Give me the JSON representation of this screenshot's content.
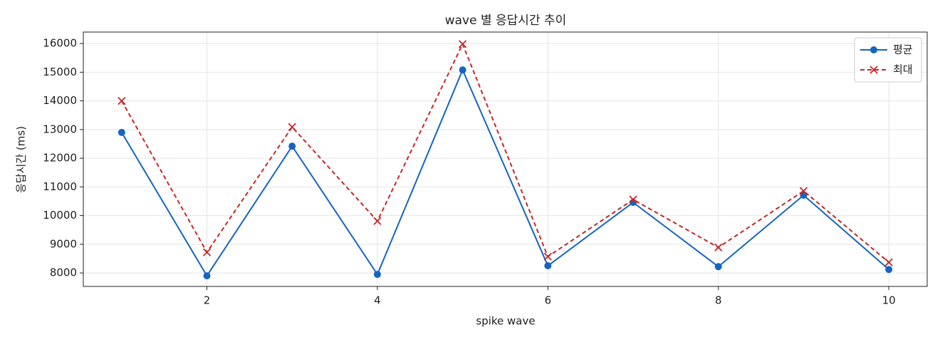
{
  "chart_data": {
    "type": "line",
    "title": "wave 별 응답시간 추이",
    "xlabel": "spike wave",
    "ylabel": "응답시간 (ms)",
    "x": [
      1,
      2,
      3,
      4,
      5,
      6,
      7,
      8,
      9,
      10
    ],
    "series": [
      {
        "name": "평균",
        "color": "#1565c0",
        "marker": "o",
        "dash": false,
        "values": [
          12900,
          7900,
          12420,
          7950,
          15080,
          8250,
          10460,
          8220,
          10710,
          8120
        ]
      },
      {
        "name": "최대",
        "color": "#c62828",
        "marker": "x",
        "dash": true,
        "values": [
          14000,
          8720,
          13090,
          9810,
          15980,
          8570,
          10560,
          8890,
          10860,
          8370
        ]
      }
    ],
    "xlim": [
      0.55,
      10.45
    ],
    "ylim": [
      7530,
      16400
    ],
    "xticks": [
      2,
      4,
      6,
      8,
      10
    ],
    "yticks": [
      8000,
      9000,
      10000,
      11000,
      12000,
      13000,
      14000,
      15000,
      16000
    ],
    "grid": true,
    "legend": "upper-right"
  }
}
